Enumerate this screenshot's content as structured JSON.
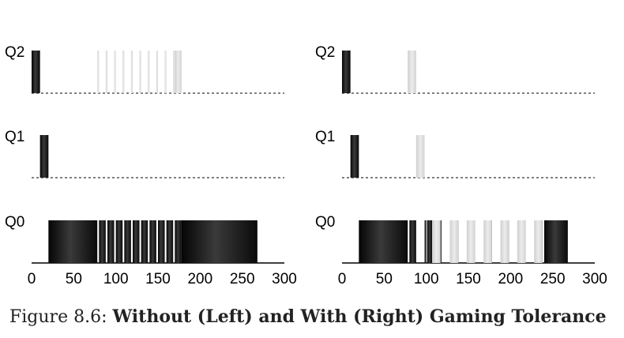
{
  "caption": {
    "prefix": "Figure 8.6:",
    "title": "Without (Left) and With (Right) Gaming Tolerance"
  },
  "colors": {
    "cpu_job": "#1e1e1e",
    "gaming_job": "#d8d8d8",
    "io_gap": "#ffffff",
    "axis": "#000000"
  },
  "chart_data": [
    {
      "type": "bar",
      "panel": "left",
      "queues": [
        "Q2",
        "Q1",
        "Q0"
      ],
      "xlim": [
        0,
        300
      ],
      "xticks": [
        "0",
        "50",
        "100",
        "150",
        "200",
        "250",
        "300"
      ],
      "runs": [
        {
          "queue": "Q2",
          "job": "A",
          "start": 0,
          "end": 10
        },
        {
          "queue": "Q1",
          "job": "A",
          "start": 10,
          "end": 20
        },
        {
          "queue": "Q0",
          "job": "A",
          "start": 20,
          "end": 78
        },
        {
          "queue": "Q0",
          "job": "A",
          "start": 80,
          "end": 88
        },
        {
          "queue": "Q0",
          "job": "A",
          "start": 90,
          "end": 98
        },
        {
          "queue": "Q0",
          "job": "A",
          "start": 100,
          "end": 108
        },
        {
          "queue": "Q0",
          "job": "A",
          "start": 110,
          "end": 118
        },
        {
          "queue": "Q0",
          "job": "A",
          "start": 120,
          "end": 128
        },
        {
          "queue": "Q0",
          "job": "A",
          "start": 130,
          "end": 138
        },
        {
          "queue": "Q0",
          "job": "A",
          "start": 140,
          "end": 148
        },
        {
          "queue": "Q0",
          "job": "A",
          "start": 150,
          "end": 158
        },
        {
          "queue": "Q0",
          "job": "A",
          "start": 160,
          "end": 168
        },
        {
          "queue": "Q0",
          "job": "A",
          "start": 170,
          "end": 178
        },
        {
          "queue": "Q0",
          "job": "A",
          "start": 178,
          "end": 268
        },
        {
          "queue": "Q2",
          "job": "B",
          "start": 78,
          "end": 80
        },
        {
          "queue": "Q2",
          "job": "B",
          "start": 88,
          "end": 90
        },
        {
          "queue": "Q2",
          "job": "B",
          "start": 98,
          "end": 100
        },
        {
          "queue": "Q2",
          "job": "B",
          "start": 108,
          "end": 110
        },
        {
          "queue": "Q2",
          "job": "B",
          "start": 118,
          "end": 120
        },
        {
          "queue": "Q2",
          "job": "B",
          "start": 128,
          "end": 130
        },
        {
          "queue": "Q2",
          "job": "B",
          "start": 138,
          "end": 140
        },
        {
          "queue": "Q2",
          "job": "B",
          "start": 148,
          "end": 150
        },
        {
          "queue": "Q2",
          "job": "B",
          "start": 158,
          "end": 160
        },
        {
          "queue": "Q2",
          "job": "B",
          "start": 168,
          "end": 170
        },
        {
          "queue": "Q2",
          "job": "B",
          "start": 170,
          "end": 178
        }
      ]
    },
    {
      "type": "bar",
      "panel": "right",
      "queues": [
        "Q2",
        "Q1",
        "Q0"
      ],
      "xlim": [
        0,
        300
      ],
      "xticks": [
        "0",
        "50",
        "100",
        "150",
        "200",
        "250",
        "300"
      ],
      "runs": [
        {
          "queue": "Q2",
          "job": "A",
          "start": 0,
          "end": 10
        },
        {
          "queue": "Q1",
          "job": "A",
          "start": 10,
          "end": 20
        },
        {
          "queue": "Q0",
          "job": "A",
          "start": 20,
          "end": 78
        },
        {
          "queue": "Q0",
          "job": "A",
          "start": 80,
          "end": 88
        },
        {
          "queue": "Q0",
          "job": "A",
          "start": 98,
          "end": 100
        },
        {
          "queue": "Q0",
          "job": "A",
          "start": 101,
          "end": 107
        },
        {
          "queue": "Q0",
          "job": "A",
          "start": 110,
          "end": 118
        },
        {
          "queue": "Q0",
          "job": "A",
          "start": 130,
          "end": 138
        },
        {
          "queue": "Q0",
          "job": "A",
          "start": 150,
          "end": 158
        },
        {
          "queue": "Q0",
          "job": "A",
          "start": 170,
          "end": 178
        },
        {
          "queue": "Q0",
          "job": "A",
          "start": 190,
          "end": 198
        },
        {
          "queue": "Q0",
          "job": "A",
          "start": 210,
          "end": 218
        },
        {
          "queue": "Q0",
          "job": "A",
          "start": 230,
          "end": 238
        },
        {
          "queue": "Q0",
          "job": "A",
          "start": 240,
          "end": 268
        },
        {
          "queue": "Q2",
          "job": "B",
          "start": 78,
          "end": 88
        },
        {
          "queue": "Q1",
          "job": "B",
          "start": 88,
          "end": 98
        },
        {
          "queue": "Q0",
          "job": "B",
          "start": 107,
          "end": 117
        },
        {
          "queue": "Q0",
          "job": "B",
          "start": 128,
          "end": 138
        },
        {
          "queue": "Q0",
          "job": "B",
          "start": 148,
          "end": 158
        },
        {
          "queue": "Q0",
          "job": "B",
          "start": 168,
          "end": 178
        },
        {
          "queue": "Q0",
          "job": "B",
          "start": 188,
          "end": 198
        },
        {
          "queue": "Q0",
          "job": "B",
          "start": 208,
          "end": 218
        },
        {
          "queue": "Q0",
          "job": "B",
          "start": 228,
          "end": 238
        }
      ]
    }
  ]
}
